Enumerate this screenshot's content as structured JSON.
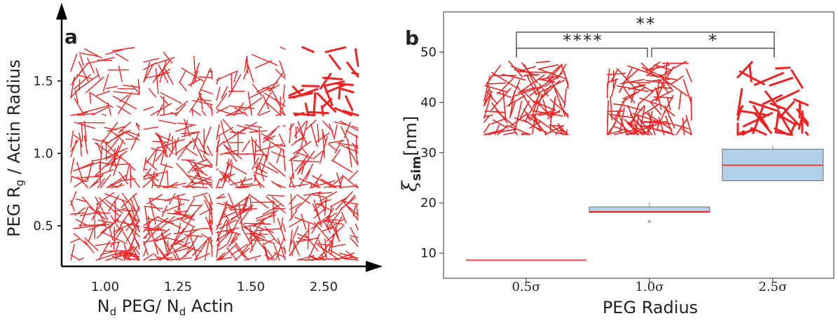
{
  "chart_data": [
    {
      "type": "snapshot-grid",
      "panel_label": "a",
      "x_label": [
        "N",
        "d",
        " PEG/ N",
        "d",
        " Actin"
      ],
      "y_label": [
        "PEG R",
        "g",
        " / Actin Radius"
      ],
      "categories": [
        "1.00",
        "1.25",
        "1.50",
        "2.50"
      ],
      "ylim": [
        0.22,
        2.04
      ],
      "yticks": [
        0.5,
        {
          "value": 1,
          "label": "1.0"
        },
        1.5
      ],
      "color": "#ee2222"
    },
    {
      "type": "box",
      "panel_label": "b",
      "x_label": "PEG Radius",
      "y_label": [
        "ξ",
        "sim",
        "[nm]"
      ],
      "categories": [
        "0.5σ",
        "1.0σ",
        "2.5σ"
      ],
      "ylim": [
        5,
        58
      ],
      "yticks": [
        10,
        20,
        30,
        40,
        50
      ],
      "box_color": "#b3d0e8",
      "median_color": "#ee2222",
      "boxes": [
        {
          "min": 8.6,
          "q1": 8.6,
          "median": 8.6,
          "q3": 8.6,
          "max": 8.6,
          "outliers": []
        },
        {
          "min": 18.1,
          "q1": 18.1,
          "median": 18.25,
          "q3": 19.2,
          "max": 20.1,
          "outliers": [
            16.3
          ]
        },
        {
          "min": 24.4,
          "q1": 24.4,
          "median": 27.5,
          "q3": 30.7,
          "max": 31.4,
          "outliers": []
        }
      ],
      "significance": [
        "**",
        "****",
        "*"
      ]
    }
  ]
}
